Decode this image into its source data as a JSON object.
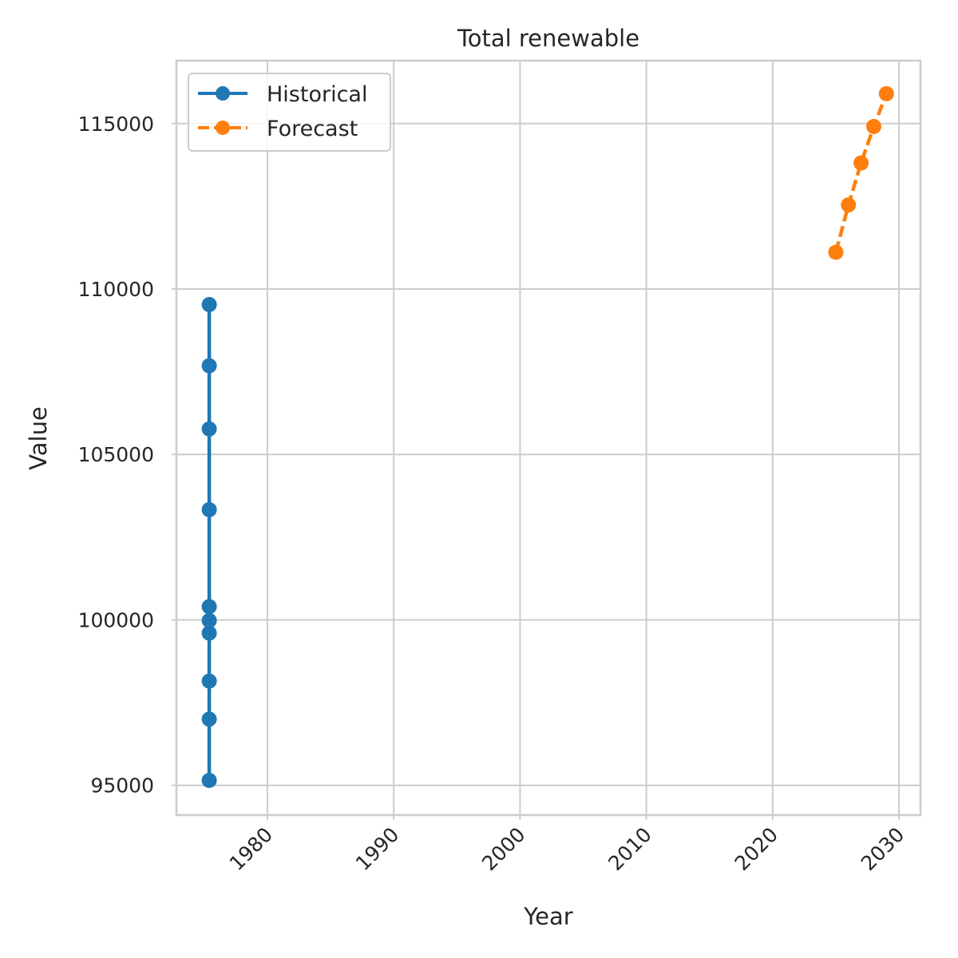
{
  "chart_data": {
    "type": "line",
    "title": "Total renewable",
    "xlabel": "Year",
    "ylabel": "Value",
    "xlim": [
      1972.8,
      2031.7
    ],
    "ylim": [
      94100,
      116900
    ],
    "x_ticks": [
      1980,
      1990,
      2000,
      2010,
      2020,
      2030
    ],
    "y_ticks": [
      95000,
      100000,
      105000,
      110000,
      115000
    ],
    "grid": true,
    "legend_position": "top-left",
    "series": [
      {
        "name": "Historical",
        "color": "#1f77b4",
        "line_style": "solid",
        "marker": "circle",
        "x": [
          1975.4,
          1975.4,
          1975.4,
          1975.4,
          1975.4,
          1975.4,
          1975.4,
          1975.4,
          1975.4,
          1975.4
        ],
        "y": [
          95150,
          97000,
          98150,
          99600,
          99980,
          100400,
          103330,
          105770,
          107680,
          109530
        ]
      },
      {
        "name": "Forecast",
        "color": "#ff7f0e",
        "line_style": "dashed",
        "marker": "circle",
        "x": [
          2025,
          2026,
          2027,
          2028,
          2029
        ],
        "y": [
          111110,
          112540,
          113810,
          114910,
          115900
        ]
      }
    ]
  }
}
